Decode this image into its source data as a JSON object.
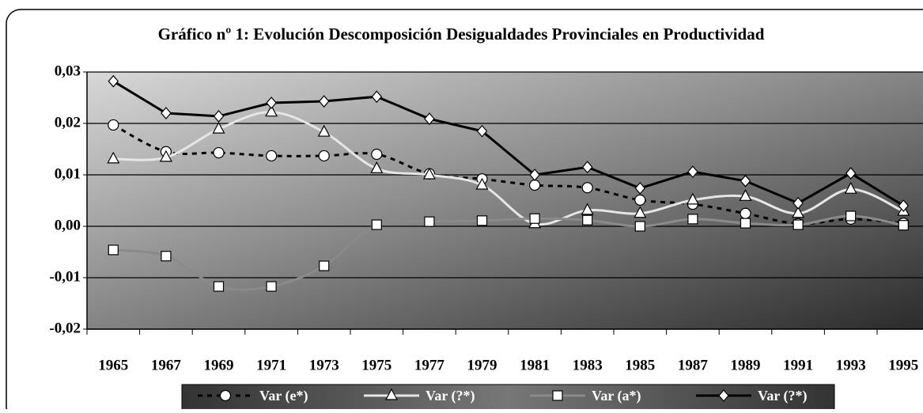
{
  "chart_data": {
    "type": "line",
    "title": "Gráfico nº 1: Evolución Descomposición Desigualdades Provinciales en Productividad",
    "categories": [
      "1965",
      "1967",
      "1969",
      "1971",
      "1973",
      "1975",
      "1977",
      "1979",
      "1981",
      "1983",
      "1985",
      "1987",
      "1989",
      "1991",
      "1993",
      "1995"
    ],
    "series": [
      {
        "name": "Var (e*)",
        "color": "#000000",
        "values": [
          0.0197,
          0.0145,
          0.0143,
          0.0137,
          0.0137,
          0.014,
          0.0102,
          0.0092,
          0.008,
          0.0075,
          0.0051,
          0.0043,
          0.0025,
          0.0005,
          0.0014,
          0.0006
        ]
      },
      {
        "name": "Var (?*)",
        "color": "#e6e6e6",
        "values": [
          0.0131,
          0.0134,
          0.0189,
          0.0222,
          0.0183,
          0.0112,
          0.01,
          0.008,
          0.0005,
          0.0031,
          0.0025,
          0.0051,
          0.0058,
          0.0025,
          0.0072,
          0.0029
        ]
      },
      {
        "name": "Var (a*)",
        "color": "#8a8a8a",
        "values": [
          -0.0046,
          -0.0058,
          -0.0117,
          -0.0117,
          -0.0077,
          0.0003,
          0.0009,
          0.0011,
          0.0015,
          0.0012,
          0.0,
          0.0014,
          0.0006,
          0.0003,
          0.002,
          0.0002
        ]
      },
      {
        "name": "Var (?*)",
        "color": "#000000",
        "values": [
          0.0282,
          0.022,
          0.0214,
          0.024,
          0.0243,
          0.0252,
          0.0209,
          0.0185,
          0.01,
          0.0115,
          0.0074,
          0.0106,
          0.0088,
          0.0045,
          0.0103,
          0.004
        ]
      }
    ],
    "ylim": [
      -0.02,
      0.03
    ],
    "yticks": [
      {
        "value": 0.03,
        "label": "0,03"
      },
      {
        "value": 0.02,
        "label": "0,02"
      },
      {
        "value": 0.01,
        "label": "0,01"
      },
      {
        "value": 0,
        "label": "0,00"
      },
      {
        "value": -0.01,
        "label": "-0,01"
      },
      {
        "value": -0.02,
        "label": "-0,02"
      }
    ],
    "grid": true
  }
}
